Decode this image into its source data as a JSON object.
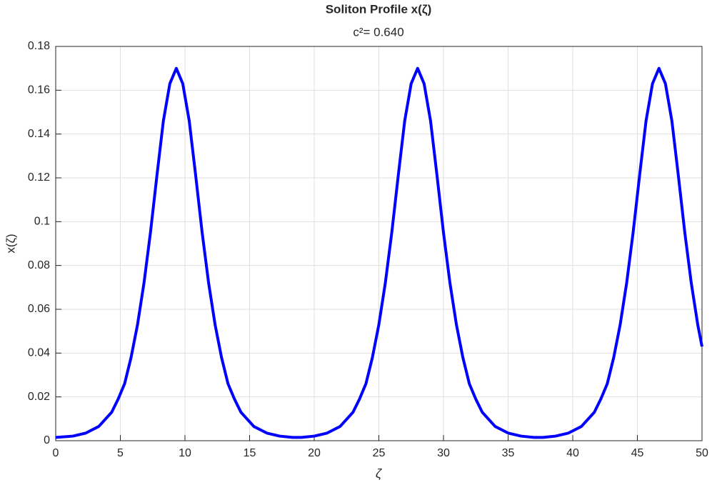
{
  "chart_data": {
    "type": "line",
    "title": "Soliton Profile x(ζ)",
    "subtitle": "c²= 0.640",
    "x_label": "ζ",
    "y_label": "x(ζ)",
    "x": [
      0,
      1.33,
      2.33,
      3.33,
      4.33,
      4.83,
      5.33,
      5.83,
      6.33,
      6.83,
      7.33,
      7.83,
      8.33,
      8.83,
      9.33,
      9.83,
      10.33,
      10.83,
      11.33,
      11.83,
      12.33,
      12.83,
      13.33,
      13.83,
      14.33,
      15.33,
      16.33,
      17.33,
      18.33,
      19,
      20,
      21,
      22,
      23,
      23.5,
      24,
      24.5,
      25,
      25.5,
      26,
      26.5,
      27,
      27.5,
      28,
      28.5,
      29,
      29.5,
      30,
      30.5,
      31,
      31.5,
      32,
      32.5,
      33,
      34,
      35,
      36,
      37,
      37.67,
      38.67,
      39.67,
      40.67,
      41.67,
      42.17,
      42.67,
      43.17,
      43.67,
      44.17,
      44.67,
      45.17,
      45.67,
      46.17,
      46.67,
      47.17,
      47.67,
      48.17,
      48.67,
      49.17,
      49.67,
      50
    ],
    "series": [
      {
        "color": "#0000ff",
        "values": [
          0.0015,
          0.0021,
          0.0035,
          0.0065,
          0.013,
          0.019,
          0.026,
          0.038,
          0.053,
          0.072,
          0.095,
          0.121,
          0.146,
          0.163,
          0.17,
          0.163,
          0.146,
          0.121,
          0.095,
          0.072,
          0.053,
          0.038,
          0.026,
          0.019,
          0.013,
          0.0065,
          0.0035,
          0.0021,
          0.0015,
          0.0015,
          0.0021,
          0.0035,
          0.0065,
          0.013,
          0.019,
          0.026,
          0.038,
          0.053,
          0.072,
          0.095,
          0.121,
          0.146,
          0.163,
          0.17,
          0.163,
          0.146,
          0.121,
          0.095,
          0.072,
          0.053,
          0.038,
          0.026,
          0.019,
          0.013,
          0.0065,
          0.0035,
          0.0021,
          0.0015,
          0.0015,
          0.0021,
          0.0035,
          0.0065,
          0.013,
          0.019,
          0.026,
          0.038,
          0.053,
          0.072,
          0.095,
          0.121,
          0.146,
          0.163,
          0.17,
          0.163,
          0.146,
          0.121,
          0.095,
          0.072,
          0.053,
          0.043
        ]
      }
    ],
    "xlim": [
      0,
      50
    ],
    "xticks": [
      0,
      5,
      10,
      15,
      20,
      25,
      30,
      35,
      40,
      45,
      50
    ],
    "ylim": [
      0,
      0.18
    ],
    "yticks": [
      0,
      0.02,
      0.04,
      0.06,
      0.08,
      0.1,
      0.12,
      0.14,
      0.16,
      0.18
    ],
    "grid": true
  }
}
